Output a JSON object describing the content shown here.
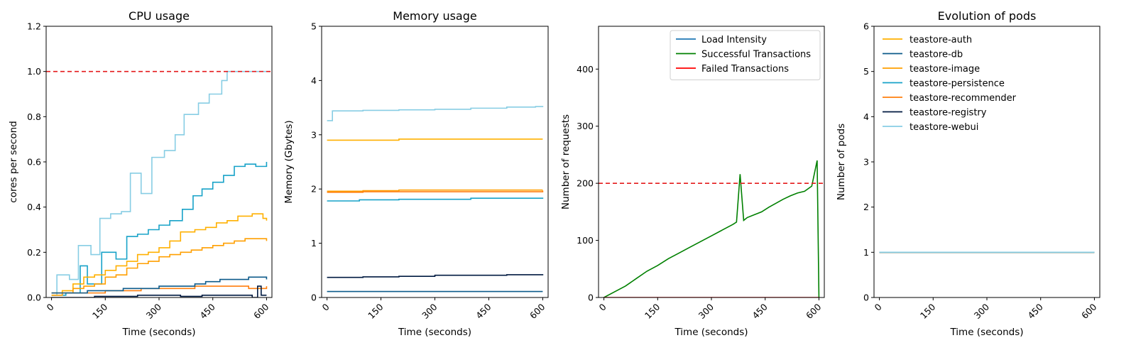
{
  "colors": {
    "reference_line": "#e41a1c",
    "load": "#1f77b4",
    "success": "#008000",
    "failed": "#ff0000"
  },
  "chart_data": [
    {
      "type": "line",
      "title": "CPU usage",
      "xlabel": "Time (seconds)",
      "ylabel": "cores per second",
      "xlim": [
        -15,
        615
      ],
      "ylim": [
        0,
        1.2
      ],
      "xticks": [
        "0",
        "150",
        "300",
        "450",
        "600"
      ],
      "yticks": [
        "0.0",
        "0.2",
        "0.4",
        "0.6",
        "0.8",
        "1.0",
        "1.2"
      ],
      "reference_line": {
        "y": 1.0
      },
      "step": true,
      "series": [
        {
          "name": "teastore-webui",
          "color": "#87cde4",
          "x": [
            0,
            15,
            40,
            50,
            60,
            75,
            110,
            135,
            165,
            195,
            220,
            250,
            280,
            315,
            345,
            370,
            410,
            440,
            475,
            490,
            600
          ],
          "y": [
            0.01,
            0.1,
            0.1,
            0.08,
            0.08,
            0.23,
            0.19,
            0.35,
            0.37,
            0.38,
            0.55,
            0.46,
            0.62,
            0.65,
            0.72,
            0.81,
            0.86,
            0.9,
            0.96,
            1.0,
            1.0
          ]
        },
        {
          "name": "teastore-persistence",
          "color": "#17a2c8",
          "x": [
            0,
            40,
            80,
            100,
            140,
            180,
            210,
            240,
            270,
            300,
            330,
            365,
            395,
            420,
            450,
            480,
            510,
            540,
            570,
            600
          ],
          "y": [
            0.01,
            0.02,
            0.14,
            0.06,
            0.2,
            0.17,
            0.27,
            0.28,
            0.3,
            0.32,
            0.34,
            0.39,
            0.45,
            0.48,
            0.51,
            0.54,
            0.58,
            0.59,
            0.58,
            0.6
          ]
        },
        {
          "name": "teastore-auth",
          "color": "#ffb000",
          "x": [
            0,
            30,
            60,
            90,
            120,
            150,
            180,
            210,
            240,
            270,
            300,
            330,
            360,
            400,
            430,
            460,
            490,
            520,
            560,
            590,
            600
          ],
          "y": [
            0.02,
            0.03,
            0.06,
            0.09,
            0.1,
            0.12,
            0.14,
            0.16,
            0.19,
            0.2,
            0.22,
            0.25,
            0.29,
            0.3,
            0.31,
            0.33,
            0.34,
            0.36,
            0.37,
            0.35,
            0.34
          ]
        },
        {
          "name": "teastore-image",
          "color": "#ff9f00",
          "x": [
            0,
            30,
            60,
            90,
            120,
            150,
            180,
            210,
            240,
            270,
            300,
            330,
            360,
            390,
            420,
            450,
            480,
            510,
            540,
            570,
            600
          ],
          "y": [
            0.01,
            0.02,
            0.04,
            0.05,
            0.06,
            0.09,
            0.1,
            0.13,
            0.15,
            0.16,
            0.18,
            0.19,
            0.2,
            0.21,
            0.22,
            0.23,
            0.24,
            0.25,
            0.26,
            0.26,
            0.25
          ]
        },
        {
          "name": "teastore-recommender",
          "color": "#ff7f0e",
          "x": [
            0,
            60,
            100,
            150,
            200,
            250,
            300,
            350,
            400,
            450,
            500,
            550,
            600
          ],
          "y": [
            0.02,
            0.02,
            0.02,
            0.03,
            0.03,
            0.04,
            0.04,
            0.04,
            0.05,
            0.05,
            0.05,
            0.04,
            0.05
          ]
        },
        {
          "name": "teastore-db",
          "color": "#0c5a8a",
          "x": [
            0,
            50,
            100,
            150,
            200,
            250,
            300,
            350,
            400,
            430,
            470,
            510,
            550,
            580,
            600
          ],
          "y": [
            0.02,
            0.02,
            0.03,
            0.03,
            0.04,
            0.04,
            0.05,
            0.05,
            0.06,
            0.07,
            0.08,
            0.08,
            0.09,
            0.09,
            0.08
          ]
        },
        {
          "name": "teastore-registry",
          "color": "#001a41",
          "x": [
            0,
            60,
            120,
            180,
            240,
            300,
            360,
            420,
            480,
            560,
            575,
            585,
            600
          ],
          "y": [
            0.0,
            0.0,
            0.005,
            0.005,
            0.01,
            0.01,
            0.005,
            0.01,
            0.01,
            0.0,
            0.05,
            0.01,
            0.01
          ]
        }
      ]
    },
    {
      "type": "line",
      "title": "Memory usage",
      "xlabel": "Time (seconds)",
      "ylabel": "Memory (Gbytes)",
      "xlim": [
        -15,
        615
      ],
      "ylim": [
        0,
        5
      ],
      "xticks": [
        "0",
        "150",
        "300",
        "450",
        "600"
      ],
      "yticks": [
        "0",
        "1",
        "2",
        "3",
        "4",
        "5"
      ],
      "step": true,
      "series": [
        {
          "name": "teastore-webui",
          "color": "#87cde4",
          "x": [
            0,
            15,
            100,
            200,
            300,
            400,
            500,
            580,
            600
          ],
          "y": [
            3.26,
            3.44,
            3.45,
            3.46,
            3.47,
            3.49,
            3.51,
            3.52,
            3.53
          ]
        },
        {
          "name": "teastore-auth",
          "color": "#ffb000",
          "x": [
            0,
            200,
            600
          ],
          "y": [
            2.9,
            2.92,
            2.92
          ]
        },
        {
          "name": "teastore-image",
          "color": "#ff9f00",
          "x": [
            0,
            100,
            200,
            400,
            600
          ],
          "y": [
            1.96,
            1.97,
            1.98,
            1.98,
            1.98
          ]
        },
        {
          "name": "teastore-recommender",
          "color": "#ff7f0e",
          "x": [
            0,
            100,
            600
          ],
          "y": [
            1.94,
            1.95,
            1.97
          ]
        },
        {
          "name": "teastore-persistence",
          "color": "#17a2c8",
          "x": [
            0,
            90,
            200,
            400,
            600
          ],
          "y": [
            1.78,
            1.8,
            1.81,
            1.83,
            1.84
          ]
        },
        {
          "name": "teastore-registry",
          "color": "#001a41",
          "x": [
            0,
            100,
            200,
            300,
            500,
            600
          ],
          "y": [
            0.37,
            0.38,
            0.39,
            0.41,
            0.42,
            0.43
          ]
        },
        {
          "name": "teastore-db",
          "color": "#0c5a8a",
          "x": [
            0,
            300,
            600
          ],
          "y": [
            0.11,
            0.11,
            0.11
          ]
        }
      ]
    },
    {
      "type": "line",
      "title": "",
      "xlabel": "Time (seconds)",
      "ylabel": "Number of requests",
      "xlim": [
        -15,
        615
      ],
      "ylim": [
        0,
        475
      ],
      "xticks": [
        "0",
        "150",
        "300",
        "450",
        "600"
      ],
      "yticks": [
        "0",
        "100",
        "200",
        "300",
        "400"
      ],
      "reference_line": {
        "y": 200
      },
      "legend": "top-right",
      "series": [
        {
          "name": "Load Intensity",
          "color": "#1f77b4",
          "x": [],
          "y": []
        },
        {
          "name": "Successful Transactions",
          "color": "#008000",
          "x": [
            0,
            30,
            60,
            90,
            120,
            150,
            180,
            210,
            240,
            270,
            300,
            330,
            360,
            370,
            380,
            390,
            400,
            420,
            440,
            460,
            480,
            500,
            520,
            540,
            560,
            580,
            595,
            600
          ],
          "y": [
            0,
            10,
            20,
            33,
            46,
            56,
            68,
            78,
            88,
            98,
            108,
            118,
            128,
            132,
            216,
            135,
            140,
            145,
            150,
            158,
            165,
            172,
            178,
            183,
            186,
            195,
            240,
            0
          ]
        },
        {
          "name": "Failed Transactions",
          "color": "#ff0000",
          "x": [
            0,
            600
          ],
          "y": [
            0,
            0
          ]
        }
      ]
    },
    {
      "type": "line",
      "title": "Evolution of pods",
      "xlabel": "Time (seconds)",
      "ylabel": "Number of pods",
      "xlim": [
        -15,
        615
      ],
      "ylim": [
        0,
        6
      ],
      "xticks": [
        "0",
        "150",
        "300",
        "450",
        "600"
      ],
      "yticks": [
        "0",
        "1",
        "2",
        "3",
        "4",
        "5",
        "6"
      ],
      "legend": "top-left",
      "series": [
        {
          "name": "teastore-auth",
          "color": "#ffb000",
          "x": [
            0,
            600
          ],
          "y": [
            1,
            1
          ]
        },
        {
          "name": "teastore-db",
          "color": "#0c5a8a",
          "x": [
            0,
            600
          ],
          "y": [
            1,
            1
          ]
        },
        {
          "name": "teastore-image",
          "color": "#ff9f00",
          "x": [
            0,
            600
          ],
          "y": [
            1,
            1
          ]
        },
        {
          "name": "teastore-persistence",
          "color": "#17a2c8",
          "x": [
            0,
            600
          ],
          "y": [
            1,
            1
          ]
        },
        {
          "name": "teastore-recommender",
          "color": "#ff7f0e",
          "x": [
            0,
            600
          ],
          "y": [
            1,
            1
          ]
        },
        {
          "name": "teastore-registry",
          "color": "#001a41",
          "x": [
            0,
            600
          ],
          "y": [
            1,
            1
          ]
        },
        {
          "name": "teastore-webui",
          "color": "#87cde4",
          "x": [
            0,
            600
          ],
          "y": [
            1,
            1
          ]
        }
      ]
    }
  ]
}
